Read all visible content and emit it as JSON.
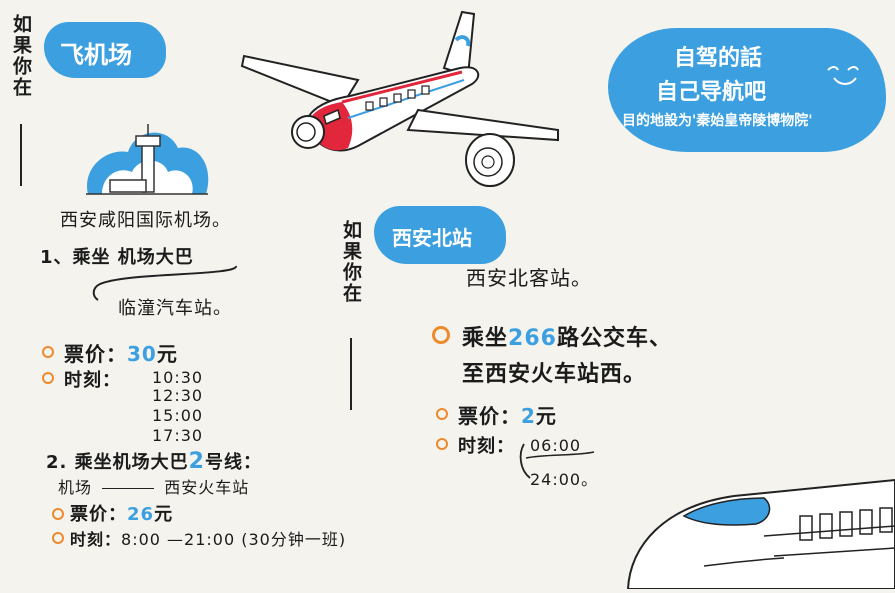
{
  "left_vertical": "如果你在",
  "middle_vertical": "如果你在",
  "airport_section": {
    "badge": "飞机场",
    "name": "西安咸阳国际机场。",
    "route1": {
      "title": "1、乘坐 机场大巴",
      "destination": "临潼汽车站。",
      "fare_label": "票价：",
      "fare_value": "30",
      "fare_unit": "元",
      "schedule_label": "时刻：",
      "times": [
        "10:30",
        "12:30",
        "15:00",
        "17:30"
      ]
    },
    "route2": {
      "title_prefix": "2. 乘坐机场大巴",
      "line_number": "2",
      "title_suffix": "号线：",
      "route_from": "机场",
      "route_to": "西安火车站",
      "fare_label": "票价：",
      "fare_value": "26",
      "fare_unit": "元",
      "schedule_label": "时刻：",
      "schedule_value": "8:00 —21:00 (30分钟一班)"
    }
  },
  "station_section": {
    "badge": "西安北站",
    "name": "西安北客站。",
    "bus_prefix": "乘坐",
    "bus_number": "266",
    "bus_suffix": "路公交车、",
    "bus_dest": "至西安火车站西。",
    "fare_label": "票价：",
    "fare_value": "2",
    "fare_unit": "元",
    "schedule_label": "时刻：",
    "schedule_start": "06:00",
    "schedule_end": "24:00。"
  },
  "drive_section": {
    "line1": "自驾的話",
    "line2": "自己导航吧",
    "line3": "目的地設为'秦始皇帝陵博物院'"
  },
  "colors": {
    "accent_blue": "#3b9fe0",
    "bullet_orange": "#ef8a2c",
    "background": "#f4f3ee"
  },
  "icons": [
    "airplane-icon",
    "control-tower-icon",
    "bullet-train-icon"
  ]
}
